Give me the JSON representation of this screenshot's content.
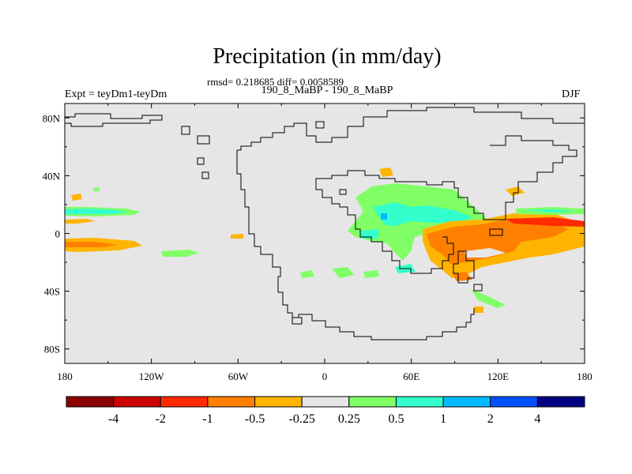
{
  "header": {
    "title": "Precipitation (in mm/day)",
    "stats": "rmsd= 0.218685 diff= 0.0058589",
    "subtitle": "190_8_MaBP - 190_8_MaBP",
    "experiment": "Expt = teyDm1-teyDm",
    "season": "DJF"
  },
  "map": {
    "background_color": "#e6e6e6",
    "lat_ticks": [
      {
        "value": 80,
        "label": "80N"
      },
      {
        "value": 40,
        "label": "40N"
      },
      {
        "value": 0,
        "label": "0"
      },
      {
        "value": -40,
        "label": "40S"
      },
      {
        "value": -80,
        "label": "80S"
      }
    ],
    "lon_ticks": [
      {
        "value": -180,
        "label": "180"
      },
      {
        "value": -120,
        "label": "120W"
      },
      {
        "value": -60,
        "label": "60W"
      },
      {
        "value": 0,
        "label": "0"
      },
      {
        "value": 60,
        "label": "60E"
      },
      {
        "value": 120,
        "label": "120E"
      },
      {
        "value": 180,
        "label": "180"
      }
    ]
  },
  "colorbar": {
    "colors": [
      "#8b0000",
      "#cc0000",
      "#ff2a00",
      "#ff8000",
      "#ffb400",
      "#e6e6e6",
      "#80ff66",
      "#33ffcc",
      "#00bbff",
      "#0050ff",
      "#000080"
    ],
    "labels": [
      "-4",
      "-2",
      "-1",
      "-0.5",
      "-0.25",
      "0.25",
      "0.5",
      "1",
      "2",
      "4"
    ]
  }
}
